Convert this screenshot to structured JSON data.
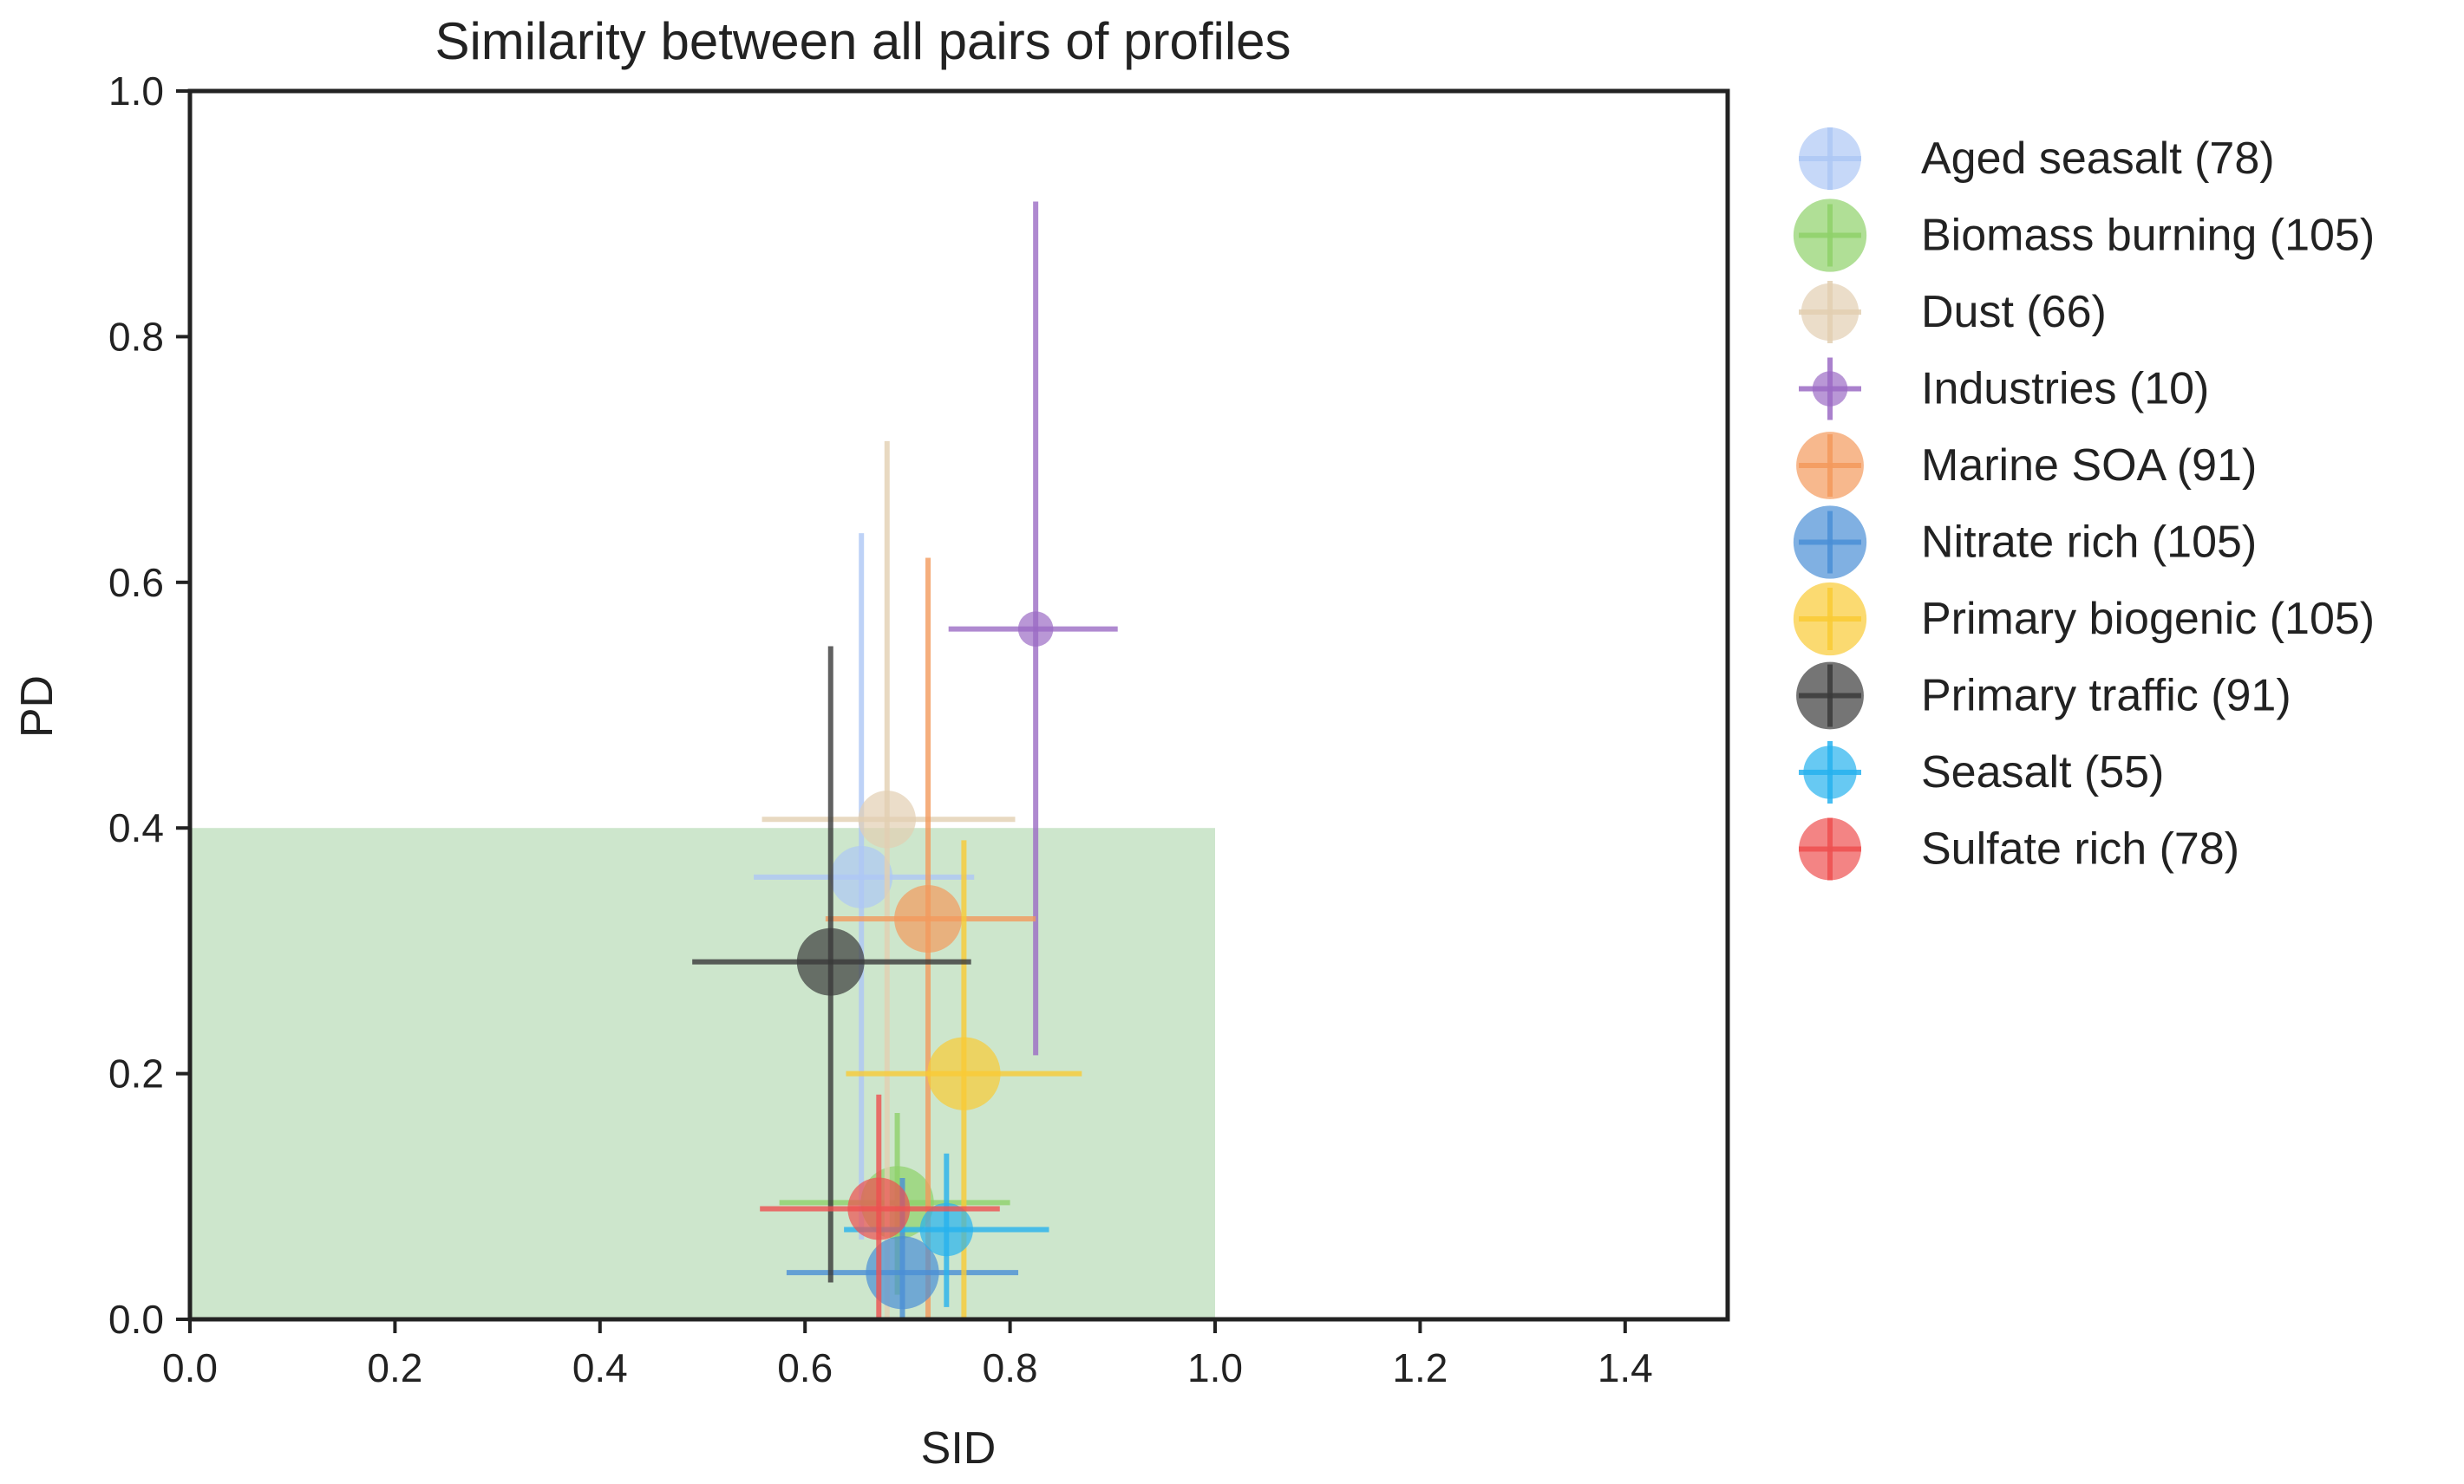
{
  "chart_data": {
    "type": "scatter",
    "title": "Similarity between all pairs of profiles",
    "xlabel": "SID",
    "ylabel": "PD",
    "xlim": [
      0,
      1.5
    ],
    "ylim": [
      0,
      1.0
    ],
    "xticks": [
      0.0,
      0.2,
      0.4,
      0.6,
      0.8,
      1.0,
      1.2,
      1.4
    ],
    "yticks": [
      0.0,
      0.2,
      0.4,
      0.6,
      0.8,
      1.0
    ],
    "xtick_labels": [
      "0.0",
      "0.2",
      "0.4",
      "0.6",
      "0.8",
      "1.0",
      "1.2",
      "1.4"
    ],
    "ytick_labels": [
      "0.0",
      "0.2",
      "0.4",
      "0.6",
      "0.8",
      "1.0"
    ],
    "grid": false,
    "legend_position": "outside-right",
    "shaded_region": {
      "x": [
        0,
        1.0
      ],
      "y": [
        0,
        0.4
      ],
      "color": "#cde6cc"
    },
    "series": [
      {
        "name": "Aged seasalt (78)",
        "n": 78,
        "color": "#aec7f5",
        "x": 0.655,
        "y": 0.36,
        "xerr": [
          0.55,
          0.765
        ],
        "yerr": [
          0.065,
          0.64
        ]
      },
      {
        "name": "Biomass burning (105)",
        "n": 105,
        "color": "#8fd16a",
        "x": 0.69,
        "y": 0.095,
        "xerr": [
          0.575,
          0.8
        ],
        "yerr": [
          0.02,
          0.168
        ]
      },
      {
        "name": "Dust (66)",
        "n": 66,
        "color": "#e2cfb2",
        "x": 0.68,
        "y": 0.407,
        "xerr": [
          0.558,
          0.805
        ],
        "yerr": [
          0.0,
          0.715
        ]
      },
      {
        "name": "Industries (10)",
        "n": 10,
        "color": "#9b6bc4",
        "x": 0.825,
        "y": 0.562,
        "xerr": [
          0.74,
          0.905
        ],
        "yerr": [
          0.215,
          0.91
        ]
      },
      {
        "name": "Marine SOA (91)",
        "n": 91,
        "color": "#f39a5c",
        "x": 0.72,
        "y": 0.326,
        "xerr": [
          0.62,
          0.825
        ],
        "yerr": [
          0.0,
          0.62
        ]
      },
      {
        "name": "Nitrate rich (105)",
        "n": 105,
        "color": "#4a8fd6",
        "x": 0.695,
        "y": 0.038,
        "xerr": [
          0.582,
          0.808
        ],
        "yerr": [
          0.0,
          0.115
        ]
      },
      {
        "name": "Primary biogenic (105)",
        "n": 105,
        "color": "#f9cb35",
        "x": 0.755,
        "y": 0.2,
        "xerr": [
          0.64,
          0.87
        ],
        "yerr": [
          0.0,
          0.39
        ]
      },
      {
        "name": "Primary traffic (91)",
        "n": 91,
        "color": "#3a3a3a",
        "x": 0.625,
        "y": 0.291,
        "xerr": [
          0.49,
          0.762
        ],
        "yerr": [
          0.03,
          0.548
        ]
      },
      {
        "name": "Seasalt (55)",
        "n": 55,
        "color": "#27b2ee",
        "x": 0.738,
        "y": 0.073,
        "xerr": [
          0.638,
          0.838
        ],
        "yerr": [
          0.01,
          0.135
        ]
      },
      {
        "name": "Sulfate rich (78)",
        "n": 78,
        "color": "#ee5050",
        "x": 0.672,
        "y": 0.09,
        "xerr": [
          0.556,
          0.79
        ],
        "yerr": [
          0.0,
          0.183
        ]
      }
    ]
  }
}
